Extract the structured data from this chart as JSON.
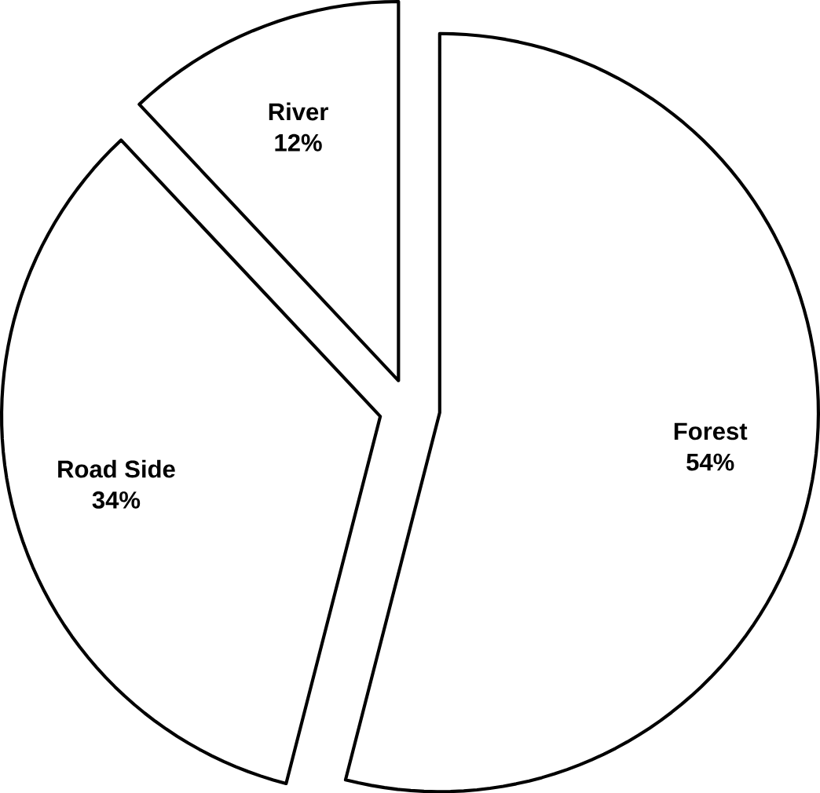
{
  "chart_data": {
    "type": "pie",
    "categories": [
      "Forest",
      "Road Side",
      "River"
    ],
    "values": [
      54,
      34,
      12
    ],
    "colors": [
      "#ffffff",
      "#ffffff",
      "#ffffff"
    ],
    "value_labels": [
      "54%",
      "34%",
      "12%"
    ]
  }
}
